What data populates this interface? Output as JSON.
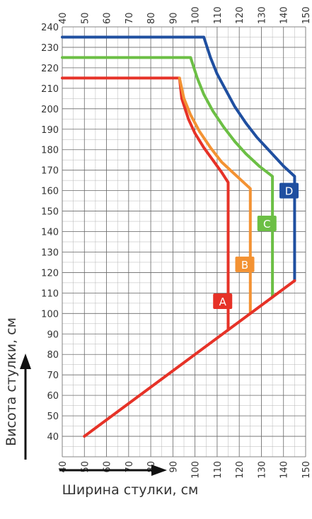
{
  "chart_data": {
    "type": "line",
    "xlabel": "Ширина стулки, см",
    "ylabel": "Висота стулки, см",
    "xlim": [
      40,
      150
    ],
    "ylim": [
      30,
      240
    ],
    "x_ticks": [
      40,
      50,
      60,
      70,
      80,
      90,
      100,
      110,
      120,
      130,
      140,
      150
    ],
    "y_ticks": [
      40,
      50,
      60,
      70,
      80,
      90,
      100,
      110,
      120,
      130,
      140,
      150,
      160,
      170,
      180,
      190,
      200,
      210,
      220,
      230,
      240
    ],
    "grid": true,
    "series": [
      {
        "name": "A",
        "color": "#e63227",
        "points": [
          [
            40,
            215
          ],
          [
            93,
            215
          ],
          [
            94,
            205
          ],
          [
            97,
            195
          ],
          [
            100,
            188
          ],
          [
            104,
            181
          ],
          [
            108,
            175
          ],
          [
            112,
            169
          ],
          [
            115,
            164
          ],
          [
            115,
            92
          ]
        ]
      },
      {
        "name": "B",
        "color": "#f39233",
        "points": [
          [
            93,
            215
          ],
          [
            95,
            205
          ],
          [
            98,
            197
          ],
          [
            102,
            189
          ],
          [
            107,
            181
          ],
          [
            112,
            174
          ],
          [
            118,
            168
          ],
          [
            125,
            161
          ],
          [
            125,
            100
          ]
        ]
      },
      {
        "name": "C",
        "color": "#6cbf45",
        "points": [
          [
            40,
            225
          ],
          [
            98,
            225
          ],
          [
            101,
            215
          ],
          [
            104,
            207
          ],
          [
            108,
            199
          ],
          [
            113,
            191
          ],
          [
            118,
            184
          ],
          [
            123,
            178
          ],
          [
            129,
            172
          ],
          [
            135,
            167
          ],
          [
            135,
            108
          ]
        ]
      },
      {
        "name": "D",
        "color": "#1f4fa0",
        "points": [
          [
            40,
            235
          ],
          [
            104,
            235
          ],
          [
            107,
            225
          ],
          [
            110,
            217
          ],
          [
            114,
            209
          ],
          [
            118,
            201
          ],
          [
            123,
            193
          ],
          [
            128,
            186
          ],
          [
            134,
            179
          ],
          [
            140,
            172
          ],
          [
            145,
            167
          ],
          [
            145,
            116
          ]
        ]
      },
      {
        "name": "",
        "color": "#e63227",
        "points": [
          [
            50,
            40
          ],
          [
            145,
            116
          ]
        ]
      }
    ],
    "badges": [
      {
        "label": "A",
        "x": 112.5,
        "y": 106,
        "color": "#e63227"
      },
      {
        "label": "B",
        "x": 122.5,
        "y": 124,
        "color": "#f39233"
      },
      {
        "label": "C",
        "x": 132.5,
        "y": 144,
        "color": "#6cbf45"
      },
      {
        "label": "D",
        "x": 142.5,
        "y": 160,
        "color": "#1f4fa0"
      }
    ]
  }
}
